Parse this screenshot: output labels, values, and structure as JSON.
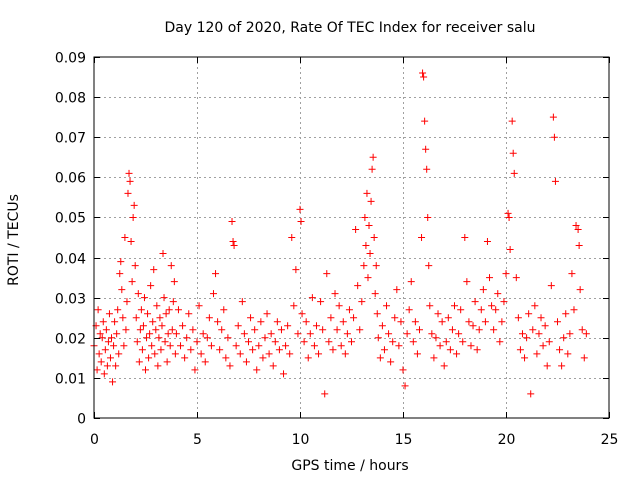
{
  "colors": {
    "marker": "#ff0000"
  },
  "chart_data": {
    "type": "scatter",
    "title": "Day 120 of 2020, Rate Of TEC Index for receiver salu",
    "xlabel": "GPS time / hours",
    "ylabel": "ROTI / TECUs",
    "xlim": [
      0,
      25
    ],
    "ylim": [
      0,
      0.09
    ],
    "xticks": [
      0,
      5,
      10,
      15,
      20,
      25
    ],
    "xtick_labels": [
      "0",
      "5",
      "10",
      "15",
      "20",
      "25"
    ],
    "yticks": [
      0,
      0.01,
      0.02,
      0.03,
      0.04,
      0.05,
      0.06,
      0.07,
      0.08,
      0.09
    ],
    "ytick_labels": [
      "0",
      "0.01",
      "0.02",
      "0.03",
      "0.04",
      "0.05",
      "0.06",
      "0.07",
      "0.08",
      "0.09"
    ],
    "grid": true,
    "marker": "+",
    "points": [
      [
        0.0,
        0.018
      ],
      [
        0.1,
        0.023
      ],
      [
        0.15,
        0.012
      ],
      [
        0.2,
        0.027
      ],
      [
        0.25,
        0.016
      ],
      [
        0.3,
        0.021
      ],
      [
        0.35,
        0.014
      ],
      [
        0.4,
        0.02
      ],
      [
        0.45,
        0.024
      ],
      [
        0.5,
        0.011
      ],
      [
        0.55,
        0.017
      ],
      [
        0.6,
        0.022
      ],
      [
        0.65,
        0.013
      ],
      [
        0.7,
        0.019
      ],
      [
        0.75,
        0.026
      ],
      [
        0.8,
        0.015
      ],
      [
        0.85,
        0.02
      ],
      [
        0.9,
        0.009
      ],
      [
        0.95,
        0.018
      ],
      [
        1.0,
        0.024
      ],
      [
        1.05,
        0.013
      ],
      [
        1.1,
        0.021
      ],
      [
        1.15,
        0.027
      ],
      [
        1.2,
        0.016
      ],
      [
        1.25,
        0.036
      ],
      [
        1.3,
        0.039
      ],
      [
        1.35,
        0.032
      ],
      [
        1.4,
        0.025
      ],
      [
        1.45,
        0.018
      ],
      [
        1.5,
        0.045
      ],
      [
        1.55,
        0.022
      ],
      [
        1.6,
        0.029
      ],
      [
        1.65,
        0.056
      ],
      [
        1.7,
        0.061
      ],
      [
        1.75,
        0.059
      ],
      [
        1.8,
        0.044
      ],
      [
        1.85,
        0.034
      ],
      [
        1.9,
        0.05
      ],
      [
        1.95,
        0.053
      ],
      [
        2.0,
        0.038
      ],
      [
        2.05,
        0.025
      ],
      [
        2.1,
        0.019
      ],
      [
        2.15,
        0.031
      ],
      [
        2.2,
        0.014
      ],
      [
        2.25,
        0.022
      ],
      [
        2.3,
        0.027
      ],
      [
        2.35,
        0.017
      ],
      [
        2.4,
        0.023
      ],
      [
        2.45,
        0.03
      ],
      [
        2.5,
        0.012
      ],
      [
        2.55,
        0.02
      ],
      [
        2.6,
        0.026
      ],
      [
        2.65,
        0.015
      ],
      [
        2.7,
        0.021
      ],
      [
        2.75,
        0.033
      ],
      [
        2.8,
        0.018
      ],
      [
        2.85,
        0.024
      ],
      [
        2.9,
        0.037
      ],
      [
        2.95,
        0.016
      ],
      [
        3.0,
        0.022
      ],
      [
        3.05,
        0.028
      ],
      [
        3.1,
        0.013
      ],
      [
        3.15,
        0.02
      ],
      [
        3.2,
        0.025
      ],
      [
        3.25,
        0.017
      ],
      [
        3.3,
        0.023
      ],
      [
        3.35,
        0.041
      ],
      [
        3.4,
        0.03
      ],
      [
        3.45,
        0.019
      ],
      [
        3.5,
        0.026
      ],
      [
        3.55,
        0.014
      ],
      [
        3.6,
        0.021
      ],
      [
        3.65,
        0.027
      ],
      [
        3.7,
        0.018
      ],
      [
        3.75,
        0.038
      ],
      [
        3.8,
        0.022
      ],
      [
        3.85,
        0.029
      ],
      [
        3.9,
        0.034
      ],
      [
        3.95,
        0.016
      ],
      [
        4.0,
        0.021
      ],
      [
        4.1,
        0.027
      ],
      [
        4.2,
        0.018
      ],
      [
        4.3,
        0.023
      ],
      [
        4.4,
        0.015
      ],
      [
        4.5,
        0.02
      ],
      [
        4.6,
        0.026
      ],
      [
        4.7,
        0.017
      ],
      [
        4.8,
        0.022
      ],
      [
        4.9,
        0.012
      ],
      [
        5.0,
        0.019
      ],
      [
        5.1,
        0.028
      ],
      [
        5.2,
        0.016
      ],
      [
        5.3,
        0.021
      ],
      [
        5.4,
        0.014
      ],
      [
        5.5,
        0.02
      ],
      [
        5.6,
        0.025
      ],
      [
        5.7,
        0.018
      ],
      [
        5.8,
        0.031
      ],
      [
        5.9,
        0.036
      ],
      [
        6.0,
        0.024
      ],
      [
        6.1,
        0.017
      ],
      [
        6.2,
        0.022
      ],
      [
        6.3,
        0.027
      ],
      [
        6.4,
        0.015
      ],
      [
        6.5,
        0.02
      ],
      [
        6.6,
        0.013
      ],
      [
        6.7,
        0.049
      ],
      [
        6.75,
        0.044
      ],
      [
        6.8,
        0.043
      ],
      [
        6.9,
        0.018
      ],
      [
        7.0,
        0.023
      ],
      [
        7.1,
        0.016
      ],
      [
        7.2,
        0.029
      ],
      [
        7.3,
        0.021
      ],
      [
        7.4,
        0.014
      ],
      [
        7.5,
        0.019
      ],
      [
        7.6,
        0.025
      ],
      [
        7.7,
        0.017
      ],
      [
        7.8,
        0.022
      ],
      [
        7.9,
        0.012
      ],
      [
        8.0,
        0.018
      ],
      [
        8.1,
        0.024
      ],
      [
        8.2,
        0.015
      ],
      [
        8.3,
        0.02
      ],
      [
        8.4,
        0.026
      ],
      [
        8.5,
        0.016
      ],
      [
        8.6,
        0.021
      ],
      [
        8.7,
        0.013
      ],
      [
        8.8,
        0.019
      ],
      [
        8.9,
        0.024
      ],
      [
        9.0,
        0.017
      ],
      [
        9.1,
        0.022
      ],
      [
        9.2,
        0.011
      ],
      [
        9.3,
        0.018
      ],
      [
        9.4,
        0.023
      ],
      [
        9.5,
        0.016
      ],
      [
        9.6,
        0.045
      ],
      [
        9.7,
        0.028
      ],
      [
        9.8,
        0.037
      ],
      [
        9.9,
        0.021
      ],
      [
        10.0,
        0.052
      ],
      [
        10.05,
        0.049
      ],
      [
        10.1,
        0.026
      ],
      [
        10.2,
        0.019
      ],
      [
        10.3,
        0.024
      ],
      [
        10.4,
        0.015
      ],
      [
        10.5,
        0.021
      ],
      [
        10.6,
        0.03
      ],
      [
        10.7,
        0.018
      ],
      [
        10.8,
        0.023
      ],
      [
        10.9,
        0.016
      ],
      [
        11.0,
        0.029
      ],
      [
        11.1,
        0.022
      ],
      [
        11.2,
        0.006
      ],
      [
        11.3,
        0.036
      ],
      [
        11.4,
        0.019
      ],
      [
        11.5,
        0.025
      ],
      [
        11.6,
        0.017
      ],
      [
        11.7,
        0.031
      ],
      [
        11.8,
        0.022
      ],
      [
        11.9,
        0.028
      ],
      [
        12.0,
        0.018
      ],
      [
        12.1,
        0.024
      ],
      [
        12.2,
        0.016
      ],
      [
        12.3,
        0.021
      ],
      [
        12.4,
        0.027
      ],
      [
        12.5,
        0.019
      ],
      [
        12.6,
        0.025
      ],
      [
        12.7,
        0.047
      ],
      [
        12.8,
        0.033
      ],
      [
        12.9,
        0.022
      ],
      [
        13.0,
        0.029
      ],
      [
        13.1,
        0.038
      ],
      [
        13.15,
        0.05
      ],
      [
        13.2,
        0.043
      ],
      [
        13.25,
        0.056
      ],
      [
        13.3,
        0.035
      ],
      [
        13.35,
        0.048
      ],
      [
        13.4,
        0.041
      ],
      [
        13.45,
        0.054
      ],
      [
        13.5,
        0.062
      ],
      [
        13.55,
        0.065
      ],
      [
        13.6,
        0.045
      ],
      [
        13.65,
        0.031
      ],
      [
        13.7,
        0.038
      ],
      [
        13.75,
        0.026
      ],
      [
        13.8,
        0.02
      ],
      [
        13.9,
        0.015
      ],
      [
        14.0,
        0.023
      ],
      [
        14.1,
        0.017
      ],
      [
        14.2,
        0.028
      ],
      [
        14.3,
        0.021
      ],
      [
        14.4,
        0.014
      ],
      [
        14.5,
        0.019
      ],
      [
        14.6,
        0.025
      ],
      [
        14.7,
        0.032
      ],
      [
        14.8,
        0.018
      ],
      [
        14.9,
        0.024
      ],
      [
        15.0,
        0.012
      ],
      [
        15.1,
        0.008
      ],
      [
        15.2,
        0.021
      ],
      [
        15.3,
        0.027
      ],
      [
        15.4,
        0.034
      ],
      [
        15.5,
        0.019
      ],
      [
        15.6,
        0.024
      ],
      [
        15.7,
        0.016
      ],
      [
        15.8,
        0.022
      ],
      [
        15.9,
        0.045
      ],
      [
        15.95,
        0.086
      ],
      [
        16.0,
        0.085
      ],
      [
        16.05,
        0.074
      ],
      [
        16.1,
        0.067
      ],
      [
        16.15,
        0.062
      ],
      [
        16.2,
        0.05
      ],
      [
        16.25,
        0.038
      ],
      [
        16.3,
        0.028
      ],
      [
        16.4,
        0.021
      ],
      [
        16.5,
        0.015
      ],
      [
        16.6,
        0.02
      ],
      [
        16.7,
        0.026
      ],
      [
        16.8,
        0.018
      ],
      [
        16.9,
        0.024
      ],
      [
        17.0,
        0.013
      ],
      [
        17.1,
        0.019
      ],
      [
        17.2,
        0.025
      ],
      [
        17.3,
        0.017
      ],
      [
        17.4,
        0.022
      ],
      [
        17.5,
        0.028
      ],
      [
        17.6,
        0.016
      ],
      [
        17.7,
        0.021
      ],
      [
        17.8,
        0.027
      ],
      [
        17.9,
        0.019
      ],
      [
        18.0,
        0.045
      ],
      [
        18.1,
        0.034
      ],
      [
        18.2,
        0.024
      ],
      [
        18.3,
        0.018
      ],
      [
        18.4,
        0.023
      ],
      [
        18.5,
        0.029
      ],
      [
        18.6,
        0.017
      ],
      [
        18.7,
        0.022
      ],
      [
        18.8,
        0.027
      ],
      [
        18.9,
        0.032
      ],
      [
        19.0,
        0.024
      ],
      [
        19.1,
        0.044
      ],
      [
        19.2,
        0.035
      ],
      [
        19.3,
        0.028
      ],
      [
        19.4,
        0.022
      ],
      [
        19.5,
        0.027
      ],
      [
        19.6,
        0.031
      ],
      [
        19.7,
        0.019
      ],
      [
        19.8,
        0.024
      ],
      [
        19.9,
        0.029
      ],
      [
        20.0,
        0.036
      ],
      [
        20.1,
        0.051
      ],
      [
        20.15,
        0.05
      ],
      [
        20.2,
        0.042
      ],
      [
        20.3,
        0.074
      ],
      [
        20.35,
        0.066
      ],
      [
        20.4,
        0.061
      ],
      [
        20.5,
        0.035
      ],
      [
        20.6,
        0.025
      ],
      [
        20.7,
        0.017
      ],
      [
        20.8,
        0.021
      ],
      [
        20.9,
        0.015
      ],
      [
        21.0,
        0.02
      ],
      [
        21.1,
        0.026
      ],
      [
        21.2,
        0.006
      ],
      [
        21.3,
        0.022
      ],
      [
        21.4,
        0.028
      ],
      [
        21.5,
        0.016
      ],
      [
        21.6,
        0.021
      ],
      [
        21.7,
        0.025
      ],
      [
        21.8,
        0.018
      ],
      [
        21.9,
        0.023
      ],
      [
        22.0,
        0.013
      ],
      [
        22.1,
        0.019
      ],
      [
        22.2,
        0.033
      ],
      [
        22.3,
        0.075
      ],
      [
        22.35,
        0.07
      ],
      [
        22.4,
        0.059
      ],
      [
        22.5,
        0.024
      ],
      [
        22.6,
        0.017
      ],
      [
        22.7,
        0.013
      ],
      [
        22.8,
        0.02
      ],
      [
        22.9,
        0.026
      ],
      [
        23.0,
        0.016
      ],
      [
        23.1,
        0.021
      ],
      [
        23.2,
        0.036
      ],
      [
        23.3,
        0.027
      ],
      [
        23.4,
        0.048
      ],
      [
        23.5,
        0.047
      ],
      [
        23.55,
        0.043
      ],
      [
        23.6,
        0.032
      ],
      [
        23.7,
        0.022
      ],
      [
        23.8,
        0.015
      ],
      [
        23.9,
        0.021
      ]
    ]
  }
}
